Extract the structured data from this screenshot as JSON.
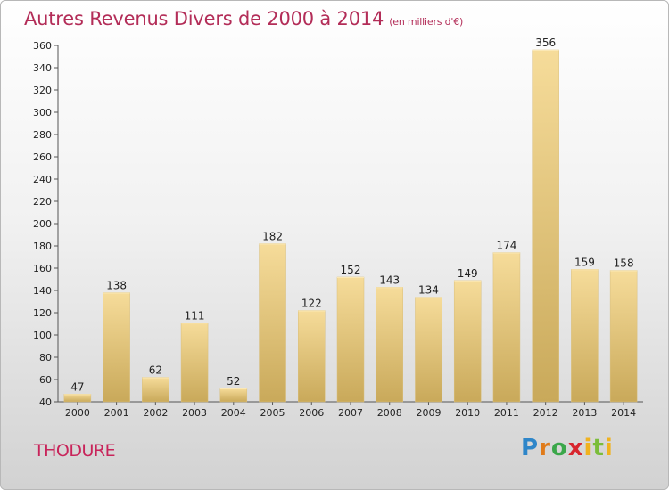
{
  "header": {
    "title": "Autres Revenus Divers de 2000 à 2014",
    "subtitle": "(en milliers d'€)"
  },
  "footer": {
    "location": "THODURE",
    "logo": "Proxiti"
  },
  "colors": {
    "bar_light": "#f6dc9a",
    "bar_dark": "#c9a95a",
    "title": "#b32d58",
    "location": "#c8245a"
  },
  "chart_data": {
    "type": "bar",
    "title": "Autres Revenus Divers de 2000 à 2014",
    "subtitle": "(en milliers d'€)",
    "categories": [
      "2000",
      "2001",
      "2002",
      "2003",
      "2004",
      "2005",
      "2006",
      "2007",
      "2008",
      "2009",
      "2010",
      "2011",
      "2012",
      "2013",
      "2014"
    ],
    "values": [
      47,
      138,
      62,
      111,
      52,
      182,
      122,
      152,
      143,
      134,
      149,
      174,
      356,
      159,
      158
    ],
    "ylim": [
      40,
      360
    ],
    "yticks": [
      40,
      60,
      80,
      100,
      120,
      140,
      160,
      180,
      200,
      220,
      240,
      260,
      280,
      300,
      320,
      340,
      360
    ],
    "grid": false,
    "data_labels": true
  }
}
